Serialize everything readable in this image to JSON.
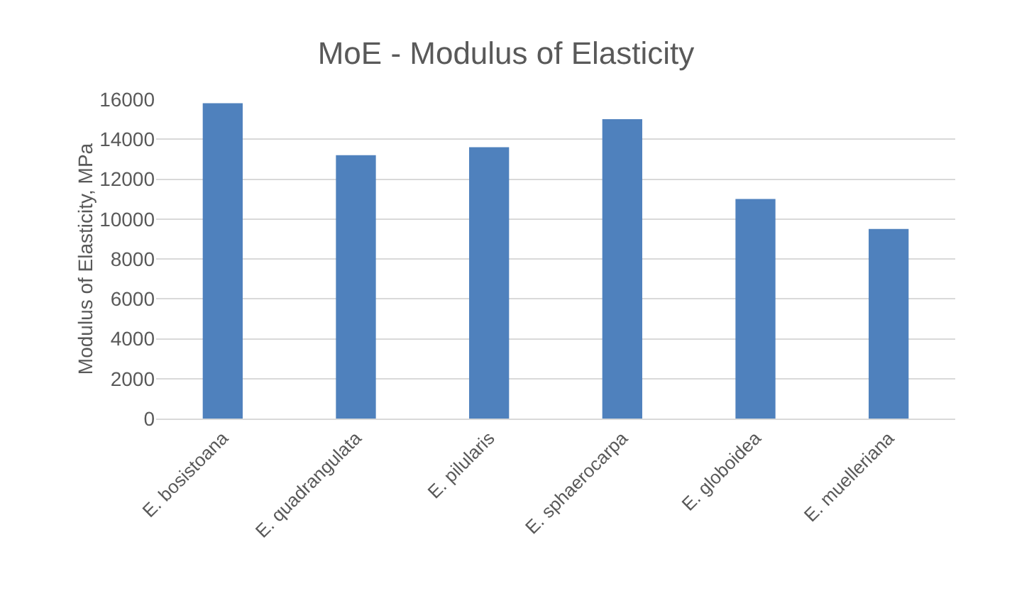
{
  "chart_data": {
    "type": "bar",
    "title": "MoE - Modulus of Elasticity",
    "ylabel": "Modulus of Elasticity, MPa",
    "categories": [
      "E. bosistoana",
      "E. quadrangulata",
      "E. pilularis",
      "E. sphaerocarpa",
      "E. globoidea",
      "E. muelleriana"
    ],
    "values": [
      15800,
      13200,
      13600,
      15000,
      11000,
      9500
    ],
    "color": "#4f81bd",
    "ylim": [
      0,
      16000
    ],
    "yticks": [
      0,
      2000,
      4000,
      6000,
      8000,
      10000,
      12000,
      14000,
      16000
    ],
    "grid": "y"
  }
}
